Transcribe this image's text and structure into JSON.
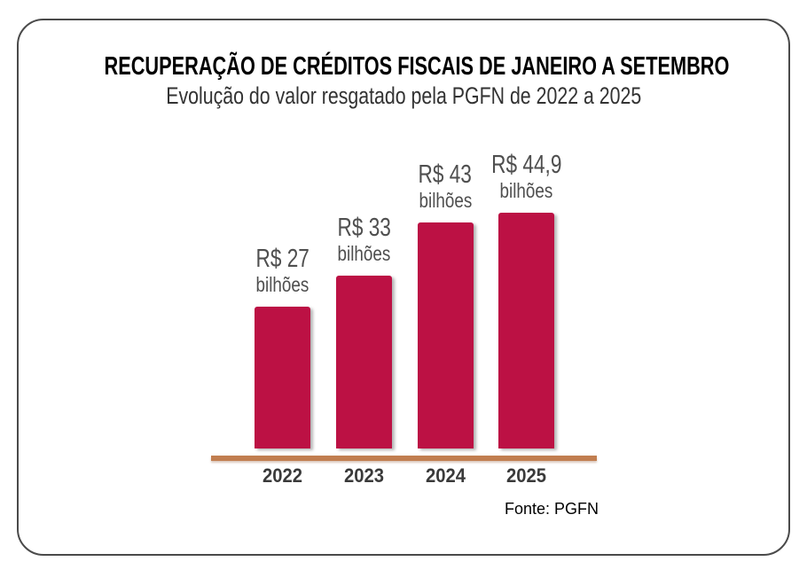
{
  "card": {
    "border_color": "#4a4a4a"
  },
  "header": {
    "title": "RECUPERAÇÃO DE CRÉDITOS FISCAIS DE JANEIRO A SETEMBRO",
    "subtitle": "Evolução do valor resgatado pela PGFN de 2022 a 2025"
  },
  "source": {
    "label": "Fonte: PGFN"
  },
  "chart_data": {
    "type": "bar",
    "title": "RECUPERAÇÃO DE CRÉDITOS FISCAIS DE JANEIRO A SETEMBRO",
    "subtitle": "Evolução do valor resgatado pela PGFN de 2022 a 2025",
    "categories": [
      "2022",
      "2023",
      "2024",
      "2025"
    ],
    "values": [
      27,
      33,
      43,
      44.9
    ],
    "value_labels": [
      [
        "R$ 27",
        "bilhões"
      ],
      [
        "R$ 33",
        "bilhões"
      ],
      [
        "R$ 43",
        "bilhões"
      ],
      [
        "R$ 44,9",
        "bilhões"
      ]
    ],
    "unit": "R$ bilhões",
    "ylim": [
      0,
      50
    ],
    "grid": false,
    "legend": false,
    "bar_color": "#bc1144",
    "axis_color": "#c17e50",
    "label_color": "#4f4f4f",
    "source": "Fonte: PGFN"
  }
}
